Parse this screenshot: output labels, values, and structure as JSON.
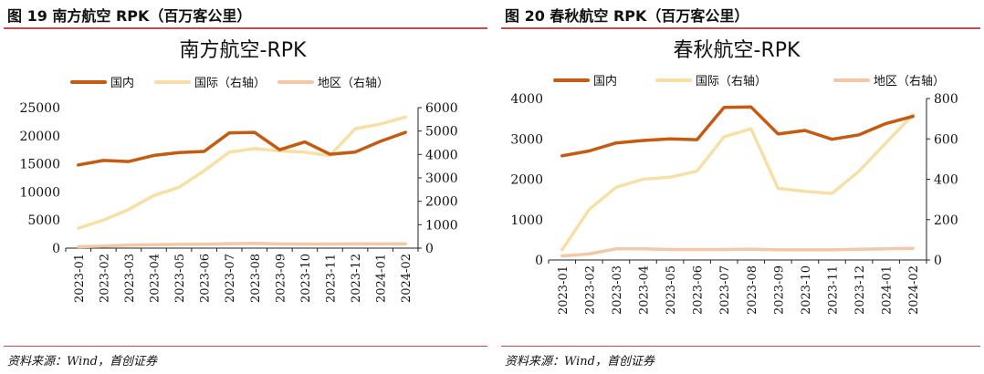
{
  "source_label": "资料来源：",
  "panels": [
    {
      "figure_title": "图 19 南方航空 RPK（百万客公里）",
      "source_text": "Wind，首创证券",
      "chart_data": {
        "type": "line",
        "title": "南方航空-RPK",
        "categories": [
          "2023-01",
          "2023-02",
          "2023-03",
          "2023-04",
          "2023-05",
          "2023-06",
          "2023-07",
          "2023-08",
          "2023-09",
          "2023-10",
          "2023-11",
          "2023-12",
          "2024-01",
          "2024-02"
        ],
        "y_left": {
          "min": 0,
          "max": 25000,
          "ticks": [
            0,
            5000,
            10000,
            15000,
            20000,
            25000
          ]
        },
        "y_right": {
          "min": 0,
          "max": 6000,
          "ticks": [
            0,
            1000,
            2000,
            3000,
            4000,
            5000,
            6000
          ]
        },
        "series": [
          {
            "name": "国内",
            "axis": "left",
            "color": "#C55A11",
            "values": [
              14800,
              15600,
              15400,
              16500,
              17000,
              17200,
              20500,
              20600,
              17500,
              18900,
              16700,
              17100,
              19000,
              20600
            ]
          },
          {
            "name": "国际（右轴）",
            "axis": "right",
            "color": "#F7E0A6",
            "values": [
              850,
              1200,
              1650,
              2250,
              2600,
              3300,
              4100,
              4250,
              4150,
              4100,
              3950,
              5100,
              5300,
              5600
            ]
          },
          {
            "name": "地区（右轴）",
            "axis": "right",
            "color": "#F4C7A8",
            "values": [
              60,
              90,
              130,
              145,
              160,
              165,
              190,
              200,
              180,
              175,
              175,
              185,
              180,
              185
            ]
          }
        ],
        "grid": false,
        "legend": "top"
      }
    },
    {
      "figure_title": "图 20 春秋航空 RPK（百万客公里）",
      "source_text": "Wind，首创证券",
      "chart_data": {
        "type": "line",
        "title": "春秋航空-RPK",
        "categories": [
          "2023-01",
          "2023-02",
          "2023-03",
          "2023-04",
          "2023-05",
          "2023-06",
          "2023-07",
          "2023-08",
          "2023-09",
          "2023-10",
          "2023-11",
          "2023-12",
          "2024-01",
          "2024-02"
        ],
        "y_left": {
          "min": 0,
          "max": 4000,
          "ticks": [
            0,
            1000,
            2000,
            3000,
            4000
          ]
        },
        "y_right": {
          "min": 0,
          "max": 800,
          "ticks": [
            0,
            200,
            400,
            600,
            800
          ]
        },
        "series": [
          {
            "name": "国内",
            "axis": "left",
            "color": "#C55A11",
            "values": [
              2580,
              2700,
              2900,
              2960,
              3000,
              2980,
              3780,
              3790,
              3120,
              3210,
              2990,
              3100,
              3380,
              3560
            ]
          },
          {
            "name": "国际（右轴）",
            "axis": "right",
            "color": "#F7E0A6",
            "values": [
              50,
              250,
              360,
              400,
              410,
              440,
              610,
              650,
              355,
              340,
              330,
              440,
              580,
              720
            ]
          },
          {
            "name": "地区（右轴）",
            "axis": "right",
            "color": "#F4C7A8",
            "values": [
              20,
              30,
              55,
              55,
              52,
              52,
              52,
              54,
              50,
              50,
              50,
              53,
              55,
              58
            ]
          }
        ],
        "grid": false,
        "legend": "top"
      }
    }
  ]
}
